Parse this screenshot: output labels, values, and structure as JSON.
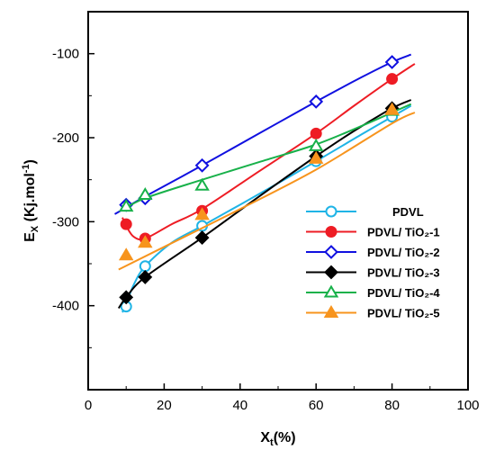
{
  "chart_data": {
    "type": "scatter",
    "xlabel": {
      "main": "X",
      "sub": "t",
      "rest": "(%)"
    },
    "ylabel": {
      "main": "E",
      "sub": "X",
      "rest": " (Kj.mol",
      "sup": "-1",
      "end": ")"
    },
    "xlim": [
      0,
      100
    ],
    "ylim": [
      -500,
      -50
    ],
    "xticks": [
      0,
      20,
      40,
      60,
      80,
      100
    ],
    "yticks": [
      -100,
      -200,
      -300,
      -400
    ],
    "grid": false,
    "legend_position": "right",
    "series": [
      {
        "name": "PDVL",
        "color": "#1fb4e6",
        "marker": "circle-open",
        "x": [
          10,
          15,
          30,
          60,
          80
        ],
        "y": [
          -401,
          -353,
          -305,
          -228,
          -175
        ],
        "curve": [
          [
            9,
            -408
          ],
          [
            10,
            -398
          ],
          [
            12,
            -375
          ],
          [
            15,
            -353
          ],
          [
            22,
            -325
          ],
          [
            30,
            -305
          ],
          [
            45,
            -267
          ],
          [
            60,
            -228
          ],
          [
            72,
            -196
          ],
          [
            80,
            -175
          ],
          [
            85,
            -162
          ]
        ]
      },
      {
        "name": "PDVL/ TiO₂-1",
        "color": "#ee1c24",
        "marker": "circle-filled",
        "x": [
          10,
          15,
          30,
          60,
          80
        ],
        "y": [
          -303,
          -320,
          -287,
          -195,
          -130
        ],
        "curve": [
          [
            9,
            -295
          ],
          [
            10,
            -305
          ],
          [
            12,
            -318
          ],
          [
            15,
            -320
          ],
          [
            22,
            -303
          ],
          [
            30,
            -285
          ],
          [
            45,
            -240
          ],
          [
            60,
            -195
          ],
          [
            70,
            -162
          ],
          [
            80,
            -130
          ],
          [
            86,
            -112
          ]
        ]
      },
      {
        "name": "PDVL/ TiO₂-2",
        "color": "#1010e0",
        "marker": "diamond-open",
        "x": [
          10,
          15,
          30,
          60,
          80
        ],
        "y": [
          -280,
          -272,
          -233,
          -157,
          -110
        ],
        "curve": [
          [
            7,
            -291
          ],
          [
            15,
            -270
          ],
          [
            30,
            -233
          ],
          [
            45,
            -195
          ],
          [
            60,
            -157
          ],
          [
            72,
            -128
          ],
          [
            80,
            -110
          ],
          [
            85,
            -101
          ]
        ]
      },
      {
        "name": "PDVL/ TiO₂-3",
        "color": "#000000",
        "marker": "diamond-filled",
        "x": [
          10,
          15,
          30,
          60,
          80
        ],
        "y": [
          -390,
          -366,
          -319,
          -222,
          -165
        ],
        "curve": [
          [
            8,
            -403
          ],
          [
            10,
            -390
          ],
          [
            15,
            -366
          ],
          [
            30,
            -319
          ],
          [
            45,
            -270
          ],
          [
            60,
            -222
          ],
          [
            70,
            -192
          ],
          [
            80,
            -165
          ],
          [
            85,
            -155
          ]
        ]
      },
      {
        "name": "PDVL/ TiO₂-4",
        "color": "#18b14a",
        "marker": "triangle-open",
        "x": [
          10,
          15,
          30,
          60,
          80
        ],
        "y": [
          -282,
          -268,
          -257,
          -210,
          -168
        ],
        "curve": [
          [
            9,
            -286
          ],
          [
            15,
            -272
          ],
          [
            30,
            -250
          ],
          [
            45,
            -229
          ],
          [
            60,
            -208
          ],
          [
            72,
            -186
          ],
          [
            80,
            -170
          ],
          [
            85,
            -160
          ]
        ]
      },
      {
        "name": "PDVL/ TiO₂-5",
        "color": "#f7941d",
        "marker": "triangle-filled",
        "x": [
          10,
          15,
          30,
          60,
          80
        ],
        "y": [
          -340,
          -325,
          -292,
          -225,
          -167
        ],
        "curve": [
          [
            8,
            -357
          ],
          [
            20,
            -330
          ],
          [
            40,
            -285
          ],
          [
            60,
            -238
          ],
          [
            80,
            -183
          ],
          [
            86,
            -170
          ]
        ]
      }
    ]
  }
}
